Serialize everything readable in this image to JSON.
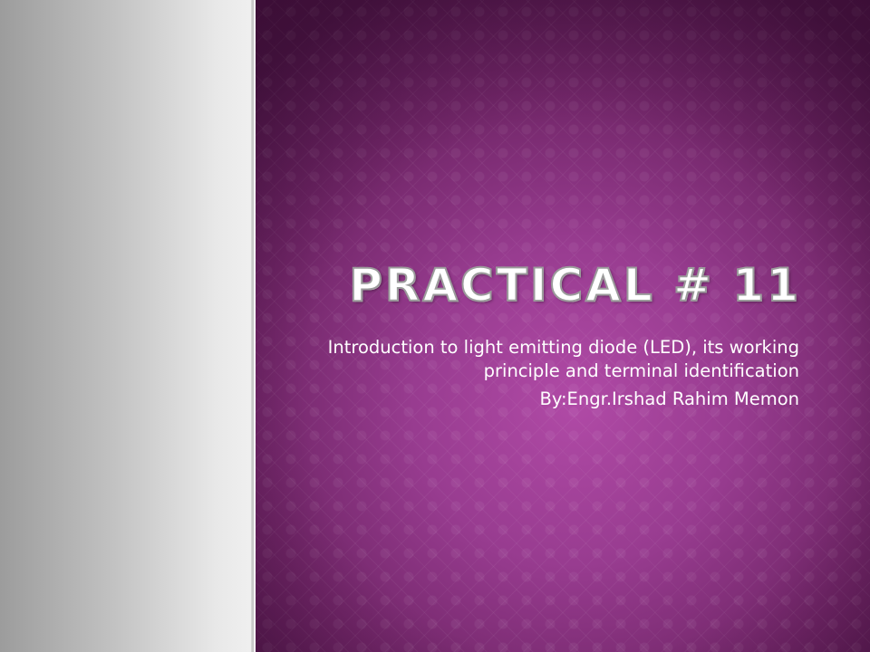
{
  "slide": {
    "title": "Practical # 11",
    "subtitle": "Introduction to light emitting diode (LED), its working principle and terminal identification",
    "author": "By:Engr.Irshad Rahim Memon"
  },
  "colors": {
    "left_panel_light": "#f0f0f0",
    "left_panel_dark": "#9c9c9c",
    "purple_center": "#b04aa6",
    "purple_edge": "#4d1647",
    "text": "#ffffff",
    "title_outline": "#9b9b9b"
  }
}
